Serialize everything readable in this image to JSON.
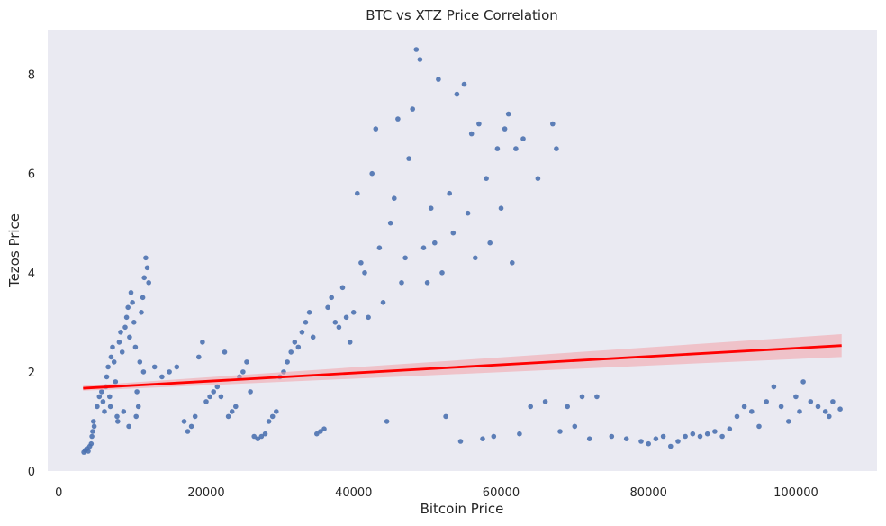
{
  "chart_data": {
    "type": "scatter",
    "title": "BTC vs XTZ Price Correlation",
    "xlabel": "Bitcoin Price",
    "ylabel": "Tezos Price",
    "xlim": [
      -1500,
      111000
    ],
    "ylim": [
      0,
      8.9
    ],
    "xticks": [
      0,
      20000,
      40000,
      60000,
      80000,
      100000
    ],
    "yticks": [
      0,
      2,
      4,
      6,
      8
    ],
    "grid": false,
    "colors": {
      "background": "#eaeaf2",
      "points": "#4c72b0",
      "regression": "#ff0000",
      "band": "#f2a0a8"
    },
    "series": [
      {
        "values": [
          [
            3400,
            0.38
          ],
          [
            3600,
            0.42
          ],
          [
            3800,
            0.45
          ],
          [
            4000,
            0.4
          ],
          [
            4200,
            0.5
          ],
          [
            4400,
            0.55
          ],
          [
            4500,
            0.7
          ],
          [
            4600,
            0.8
          ],
          [
            4700,
            1.0
          ],
          [
            4800,
            0.9
          ],
          [
            5200,
            1.3
          ],
          [
            5500,
            1.5
          ],
          [
            5800,
            1.6
          ],
          [
            6000,
            1.4
          ],
          [
            6200,
            1.2
          ],
          [
            6400,
            1.7
          ],
          [
            6500,
            1.9
          ],
          [
            6700,
            2.1
          ],
          [
            6900,
            1.5
          ],
          [
            7000,
            1.3
          ],
          [
            7100,
            2.3
          ],
          [
            7300,
            2.5
          ],
          [
            7500,
            2.2
          ],
          [
            7700,
            1.8
          ],
          [
            7900,
            1.1
          ],
          [
            8000,
            1.0
          ],
          [
            8200,
            2.6
          ],
          [
            8400,
            2.8
          ],
          [
            8600,
            2.4
          ],
          [
            8800,
            1.2
          ],
          [
            9000,
            2.9
          ],
          [
            9200,
            3.1
          ],
          [
            9400,
            3.3
          ],
          [
            9600,
            2.7
          ],
          [
            9800,
            3.6
          ],
          [
            10000,
            3.4
          ],
          [
            10200,
            3.0
          ],
          [
            10400,
            2.5
          ],
          [
            10600,
            1.6
          ],
          [
            10800,
            1.3
          ],
          [
            11000,
            2.2
          ],
          [
            11200,
            3.2
          ],
          [
            11400,
            3.5
          ],
          [
            11600,
            3.9
          ],
          [
            11800,
            4.3
          ],
          [
            12000,
            4.1
          ],
          [
            12200,
            3.8
          ],
          [
            11500,
            2.0
          ],
          [
            10500,
            1.1
          ],
          [
            9500,
            0.9
          ],
          [
            13000,
            2.1
          ],
          [
            14000,
            1.9
          ],
          [
            15000,
            2.0
          ],
          [
            16000,
            2.1
          ],
          [
            17000,
            1.0
          ],
          [
            17500,
            0.8
          ],
          [
            18000,
            0.9
          ],
          [
            18500,
            1.1
          ],
          [
            19000,
            2.3
          ],
          [
            19500,
            2.6
          ],
          [
            20000,
            1.4
          ],
          [
            20500,
            1.5
          ],
          [
            21000,
            1.6
          ],
          [
            21500,
            1.7
          ],
          [
            22000,
            1.5
          ],
          [
            22500,
            2.4
          ],
          [
            23000,
            1.1
          ],
          [
            23500,
            1.2
          ],
          [
            24000,
            1.3
          ],
          [
            24500,
            1.9
          ],
          [
            25000,
            2.0
          ],
          [
            25500,
            2.2
          ],
          [
            26000,
            1.6
          ],
          [
            26500,
            0.7
          ],
          [
            27000,
            0.65
          ],
          [
            27500,
            0.7
          ],
          [
            28000,
            0.75
          ],
          [
            28500,
            1.0
          ],
          [
            29000,
            1.1
          ],
          [
            29500,
            1.2
          ],
          [
            30000,
            1.9
          ],
          [
            30500,
            2.0
          ],
          [
            31000,
            2.2
          ],
          [
            31500,
            2.4
          ],
          [
            32000,
            2.6
          ],
          [
            32500,
            2.5
          ],
          [
            33000,
            2.8
          ],
          [
            33500,
            3.0
          ],
          [
            34000,
            3.2
          ],
          [
            34500,
            2.7
          ],
          [
            35000,
            0.75
          ],
          [
            35500,
            0.8
          ],
          [
            36000,
            0.85
          ],
          [
            36500,
            3.3
          ],
          [
            37000,
            3.5
          ],
          [
            37500,
            3.0
          ],
          [
            38000,
            2.9
          ],
          [
            38500,
            3.7
          ],
          [
            39000,
            3.1
          ],
          [
            39500,
            2.6
          ],
          [
            40000,
            3.2
          ],
          [
            40500,
            5.6
          ],
          [
            41000,
            4.2
          ],
          [
            41500,
            4.0
          ],
          [
            42000,
            3.1
          ],
          [
            42500,
            6.0
          ],
          [
            43000,
            6.9
          ],
          [
            43500,
            4.5
          ],
          [
            44000,
            3.4
          ],
          [
            44500,
            1.0
          ],
          [
            45000,
            5.0
          ],
          [
            45500,
            5.5
          ],
          [
            46000,
            7.1
          ],
          [
            46500,
            3.8
          ],
          [
            47000,
            4.3
          ],
          [
            47500,
            6.3
          ],
          [
            48000,
            7.3
          ],
          [
            48500,
            8.5
          ],
          [
            49000,
            8.3
          ],
          [
            49500,
            4.5
          ],
          [
            50000,
            3.8
          ],
          [
            50500,
            5.3
          ],
          [
            51000,
            4.6
          ],
          [
            51500,
            7.9
          ],
          [
            52000,
            4.0
          ],
          [
            52500,
            1.1
          ],
          [
            53000,
            5.6
          ],
          [
            53500,
            4.8
          ],
          [
            54000,
            7.6
          ],
          [
            54500,
            0.6
          ],
          [
            55000,
            7.8
          ],
          [
            55500,
            5.2
          ],
          [
            56000,
            6.8
          ],
          [
            56500,
            4.3
          ],
          [
            57000,
            7.0
          ],
          [
            57500,
            0.65
          ],
          [
            58000,
            5.9
          ],
          [
            58500,
            4.6
          ],
          [
            59000,
            0.7
          ],
          [
            59500,
            6.5
          ],
          [
            60000,
            5.3
          ],
          [
            60500,
            6.9
          ],
          [
            61000,
            7.2
          ],
          [
            61500,
            4.2
          ],
          [
            62000,
            6.5
          ],
          [
            62500,
            0.75
          ],
          [
            63000,
            6.7
          ],
          [
            64000,
            1.3
          ],
          [
            65000,
            5.9
          ],
          [
            66000,
            1.4
          ],
          [
            67000,
            7.0
          ],
          [
            67500,
            6.5
          ],
          [
            68000,
            0.8
          ],
          [
            69000,
            1.3
          ],
          [
            70000,
            0.9
          ],
          [
            71000,
            1.5
          ],
          [
            72000,
            0.65
          ],
          [
            73000,
            1.5
          ],
          [
            75000,
            0.7
          ],
          [
            77000,
            0.65
          ],
          [
            79000,
            0.6
          ],
          [
            80000,
            0.55
          ],
          [
            81000,
            0.65
          ],
          [
            82000,
            0.7
          ],
          [
            83000,
            0.5
          ],
          [
            84000,
            0.6
          ],
          [
            85000,
            0.7
          ],
          [
            86000,
            0.75
          ],
          [
            87000,
            0.7
          ],
          [
            88000,
            0.75
          ],
          [
            89000,
            0.8
          ],
          [
            90000,
            0.7
          ],
          [
            91000,
            0.85
          ],
          [
            92000,
            1.1
          ],
          [
            93000,
            1.3
          ],
          [
            94000,
            1.2
          ],
          [
            95000,
            0.9
          ],
          [
            96000,
            1.4
          ],
          [
            97000,
            1.7
          ],
          [
            98000,
            1.3
          ],
          [
            99000,
            1.0
          ],
          [
            100000,
            1.5
          ],
          [
            101000,
            1.8
          ],
          [
            102000,
            1.4
          ],
          [
            103000,
            1.3
          ],
          [
            104000,
            1.2
          ],
          [
            105000,
            1.4
          ],
          [
            106000,
            1.25
          ],
          [
            104500,
            1.1
          ],
          [
            100500,
            1.2
          ]
        ]
      }
    ],
    "regression": {
      "x": [
        3300,
        106200
      ],
      "y": [
        1.67,
        2.53
      ],
      "ci_halfwidth": [
        0.05,
        0.23
      ]
    }
  }
}
